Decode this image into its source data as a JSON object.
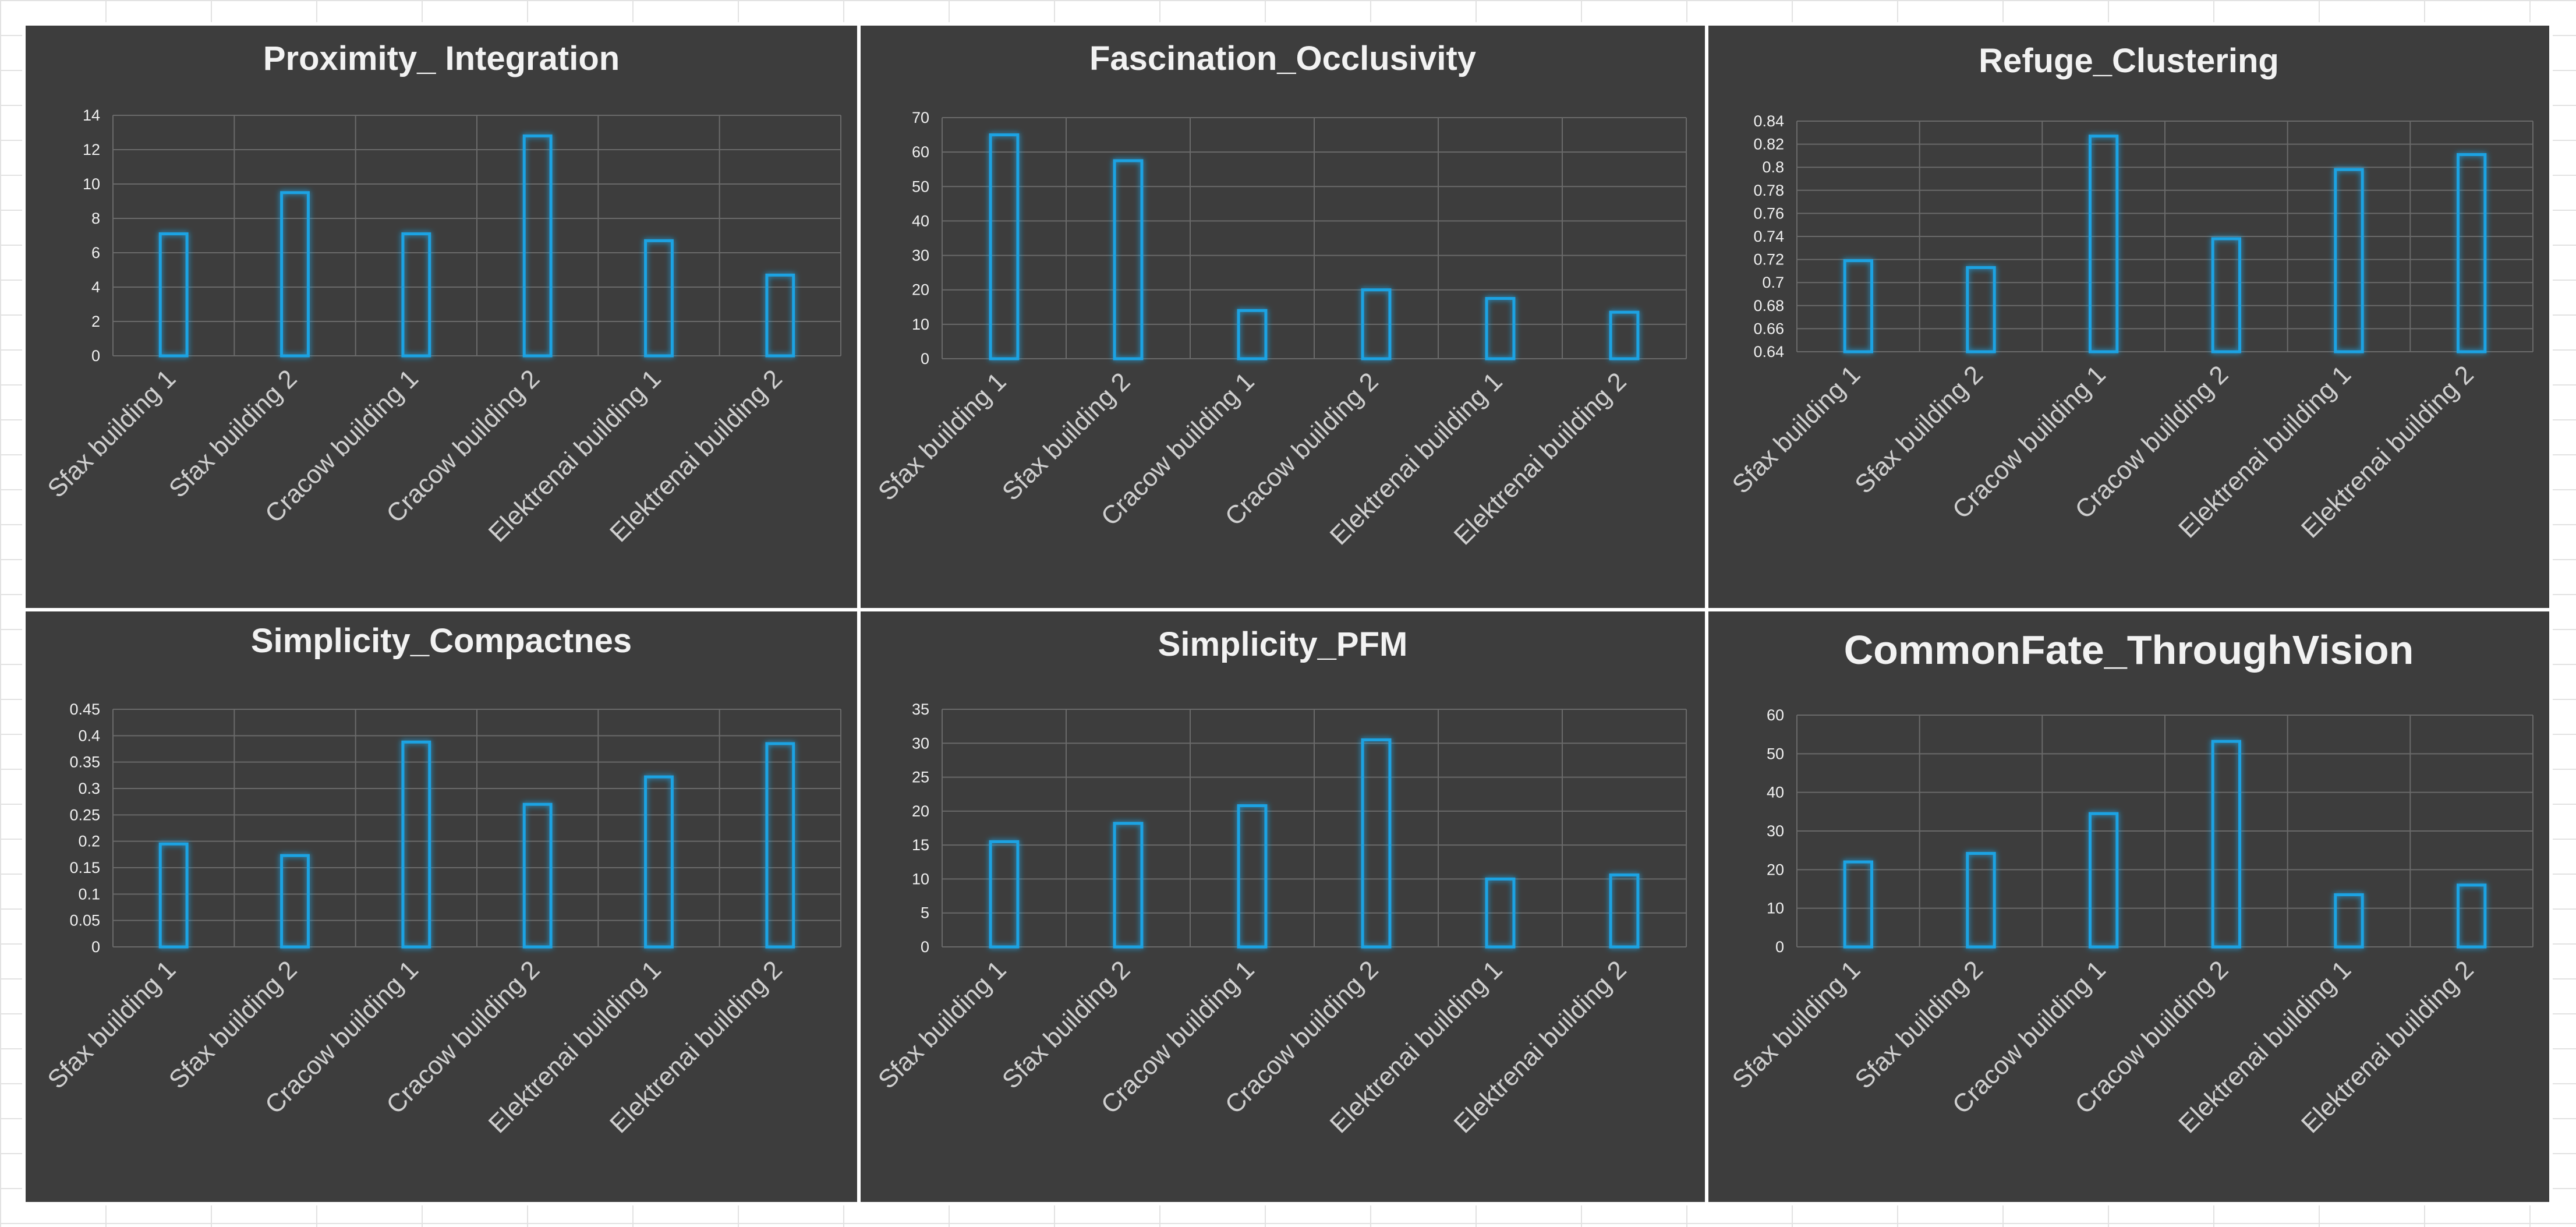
{
  "colors": {
    "panel_bg": "#3d3d3d",
    "bar_stroke": "#1fa3e3",
    "bar_glow": "#2aa7e8",
    "grid": "#6a6a6a",
    "tick_text": "#f0f0f0",
    "category_text": "#cfcfcf",
    "title_text": "#f2f2f2"
  },
  "chart_data": [
    {
      "type": "bar",
      "title": "Proximity_ Integration",
      "categories": [
        "Sfax building 1",
        "Sfax building 2",
        "Cracow building 1",
        "Cracow  building 2",
        "Elektrenai building 1",
        "Elektrenai building 2"
      ],
      "values": [
        7.1,
        9.5,
        7.1,
        12.8,
        6.7,
        4.7
      ],
      "ylim": [
        0,
        14
      ],
      "yticks": [
        "0",
        "2",
        "4",
        "6",
        "8",
        "10",
        "12",
        "14"
      ],
      "xlabel": "",
      "ylabel": "",
      "grid": true
    },
    {
      "type": "bar",
      "title": "Fascination_Occlusivity",
      "categories": [
        "Sfax building 1",
        "Sfax building 2",
        "Cracow building 1",
        "Cracow  building 2",
        "Elektrenai building 1",
        "Elektrenai building 2"
      ],
      "values": [
        65,
        57.5,
        14,
        20,
        17.5,
        13.5
      ],
      "ylim": [
        0,
        70
      ],
      "yticks": [
        "0",
        "10",
        "20",
        "30",
        "40",
        "50",
        "60",
        "70"
      ],
      "xlabel": "",
      "ylabel": "",
      "grid": true
    },
    {
      "type": "bar",
      "title": "Refuge_Clustering",
      "categories": [
        "Sfax building 1",
        "Sfax building 2",
        "Cracow building 1",
        "Cracow  building 2",
        "Elektrenai building 1",
        "Elektrenai building 2"
      ],
      "values": [
        0.719,
        0.713,
        0.827,
        0.738,
        0.798,
        0.811
      ],
      "ylim": [
        0.64,
        0.84
      ],
      "yticks": [
        "0.64",
        "0.66",
        "0.68",
        "0.7",
        "0.72",
        "0.74",
        "0.76",
        "0.78",
        "0.8",
        "0.82",
        "0.84"
      ],
      "xlabel": "",
      "ylabel": "",
      "grid": true
    },
    {
      "type": "bar",
      "title": "Simplicity_Compactnes",
      "categories": [
        "Sfax building 1",
        "Sfax building 2",
        "Cracow building 1",
        "Cracow  building 2",
        "Elektrenai building 1",
        "Elektrenai building 2"
      ],
      "values": [
        0.195,
        0.173,
        0.388,
        0.27,
        0.322,
        0.385
      ],
      "ylim": [
        0,
        0.45
      ],
      "yticks": [
        "0",
        "0.05",
        "0.1",
        "0.15",
        "0.2",
        "0.25",
        "0.3",
        "0.35",
        "0.4",
        "0.45"
      ],
      "xlabel": "",
      "ylabel": "",
      "grid": true
    },
    {
      "type": "bar",
      "title": "Simplicity_PFM",
      "categories": [
        "Sfax building 1",
        "Sfax building 2",
        "Cracow building 1",
        "Cracow  building 2",
        "Elektrenai building 1",
        "Elektrenai building 2"
      ],
      "values": [
        15.5,
        18.2,
        20.8,
        30.5,
        10,
        10.6
      ],
      "ylim": [
        0,
        35
      ],
      "yticks": [
        "0",
        "5",
        "10",
        "15",
        "20",
        "25",
        "30",
        "35"
      ],
      "xlabel": "",
      "ylabel": "",
      "grid": true
    },
    {
      "type": "bar",
      "title": "CommonFate_ThroughVision",
      "categories": [
        "Sfax building 1",
        "Sfax building 2",
        "Cracow building 1",
        "Cracow  building 2",
        "Elektrenai building 1",
        "Elektrenai building 2"
      ],
      "values": [
        22,
        24.2,
        34.5,
        53.2,
        13.5,
        16
      ],
      "ylim": [
        0,
        60
      ],
      "yticks": [
        "0",
        "10",
        "20",
        "30",
        "40",
        "50",
        "60"
      ],
      "xlabel": "",
      "ylabel": "",
      "grid": true
    }
  ]
}
